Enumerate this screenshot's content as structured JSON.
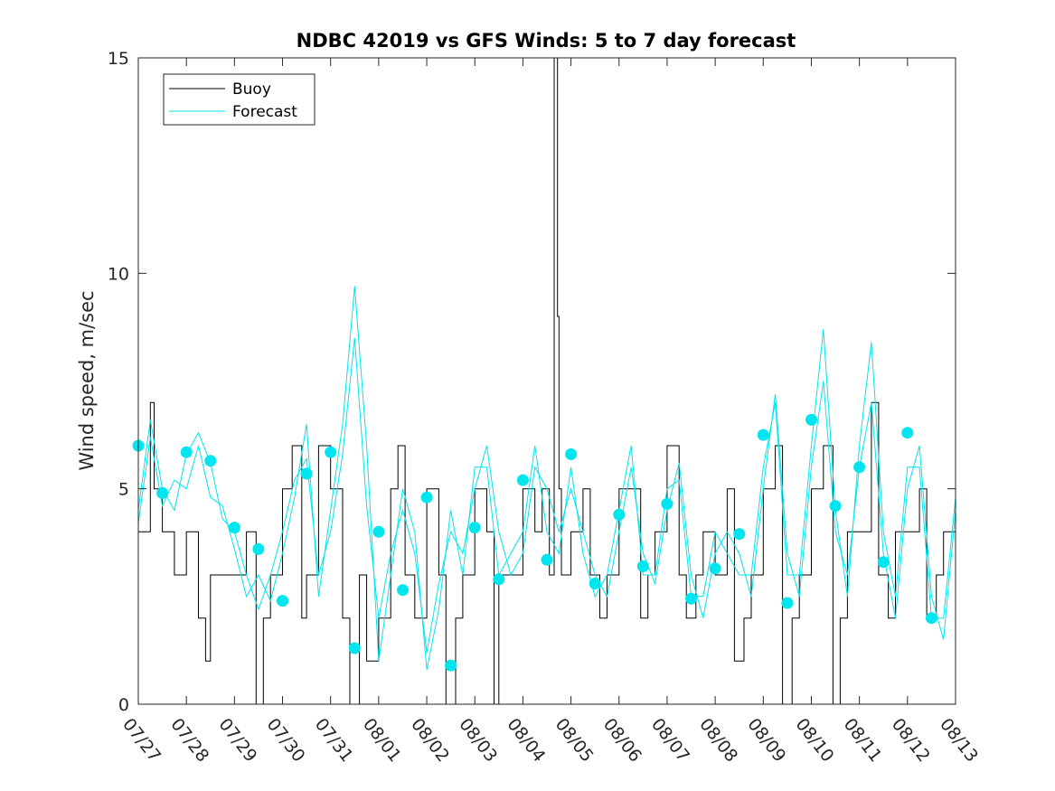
{
  "chart_data": {
    "type": "line",
    "title": "NDBC 42019 vs GFS Winds: 5 to 7 day forecast",
    "xlabel": "",
    "ylabel": "Wind speed, m/sec",
    "xlim": [
      "07/27",
      "08/13"
    ],
    "ylim": [
      0,
      15
    ],
    "x_ticks": [
      "07/27",
      "07/28",
      "07/29",
      "07/30",
      "07/31",
      "08/01",
      "08/02",
      "08/03",
      "08/04",
      "08/05",
      "08/06",
      "08/07",
      "08/08",
      "08/09",
      "08/10",
      "08/11",
      "08/12",
      "08/13"
    ],
    "y_ticks": [
      0,
      5,
      10,
      15
    ],
    "grid": false,
    "legend_position": "top-left",
    "series": [
      {
        "name": "Buoy",
        "color": "#000000",
        "note_days_are_offsets_from_07_27": true,
        "x": [
          0,
          0.25,
          0.33,
          0.5,
          0.75,
          1,
          1.25,
          1.4,
          1.5,
          1.75,
          2,
          2.25,
          2.45,
          2.6,
          2.75,
          3,
          3.2,
          3.4,
          3.5,
          3.75,
          4,
          4.25,
          4.4,
          4.6,
          4.75,
          5,
          5.25,
          5.4,
          5.55,
          5.75,
          6,
          6.25,
          6.4,
          6.6,
          6.75,
          7,
          7.25,
          7.4,
          7.5,
          7.75,
          8,
          8.25,
          8.4,
          8.55,
          8.65,
          8.72,
          8.75,
          8.8,
          9,
          9.25,
          9.4,
          9.6,
          9.75,
          10,
          10.25,
          10.45,
          10.6,
          10.75,
          11,
          11.25,
          11.4,
          11.6,
          11.75,
          12,
          12.25,
          12.4,
          12.6,
          12.75,
          13,
          13.25,
          13.4,
          13.6,
          13.75,
          14,
          14.25,
          14.45,
          14.6,
          14.75,
          15,
          15.25,
          15.4,
          15.6,
          15.75,
          16,
          16.25,
          16.4,
          16.6,
          16.75,
          17
        ],
        "values": [
          4,
          7,
          5,
          4,
          3,
          4,
          2,
          1,
          3,
          3,
          3,
          4,
          0,
          2,
          3,
          5,
          6,
          2,
          3,
          6,
          5,
          2,
          0,
          3,
          1,
          2,
          5,
          6,
          3,
          2,
          5,
          3,
          0,
          2,
          3,
          5,
          4,
          0,
          3,
          3,
          5,
          4,
          5,
          3,
          15,
          9,
          5,
          3,
          4,
          5,
          3,
          2,
          3,
          5,
          5,
          2,
          3,
          4,
          6,
          3,
          2,
          3,
          4,
          3,
          5,
          1,
          2,
          3,
          5,
          6,
          0,
          2,
          3,
          5,
          6,
          0,
          2,
          4,
          4,
          7,
          3,
          2,
          4,
          4,
          5,
          2,
          3,
          4,
          5
        ]
      },
      {
        "name": "Forecast",
        "color": "#00e5ee",
        "x": [
          0,
          0.25,
          0.5,
          0.75,
          1,
          1.25,
          1.5,
          1.75,
          2,
          2.25,
          2.5,
          2.75,
          3,
          3.25,
          3.5,
          3.75,
          4,
          4.25,
          4.5,
          4.75,
          5,
          5.25,
          5.5,
          5.75,
          6,
          6.25,
          6.5,
          6.75,
          7,
          7.25,
          7.5,
          7.75,
          8,
          8.25,
          8.5,
          8.75,
          9,
          9.25,
          9.5,
          9.75,
          10,
          10.25,
          10.5,
          10.75,
          11,
          11.25,
          11.5,
          11.75,
          12,
          12.25,
          12.5,
          12.75,
          13,
          13.25,
          13.5,
          13.75,
          14,
          14.25,
          14.5,
          14.75,
          15,
          15.25,
          15.5,
          15.75,
          16,
          16.25,
          16.5,
          16.75,
          17
        ],
        "values": [
          4.5,
          6.6,
          5.0,
          4.5,
          5.8,
          6.3,
          5.6,
          4.3,
          4.0,
          3.0,
          2.2,
          3.0,
          4.0,
          5.2,
          5.7,
          3.0,
          4.0,
          5.8,
          8.5,
          4.6,
          2.0,
          3.5,
          4.5,
          3.5,
          1.2,
          2.8,
          4.0,
          3.5,
          5.0,
          6.0,
          4.0,
          3.0,
          3.5,
          5.5,
          5.0,
          4.0,
          5.0,
          4.0,
          3.0,
          2.5,
          4.0,
          5.5,
          3.5,
          2.8,
          4.5,
          5.6,
          3.0,
          2.0,
          3.5,
          4.0,
          3.5,
          2.5,
          5.0,
          7.2,
          3.5,
          2.5,
          5.5,
          7.5,
          4.0,
          3.0,
          5.5,
          7.0,
          3.5,
          2.0,
          5.0,
          6.0,
          2.5,
          1.5,
          4.5
        ]
      },
      {
        "name": "",
        "color": "#00e5ee",
        "x": [
          0,
          0.25,
          0.5,
          0.75,
          1,
          1.25,
          1.5,
          1.75,
          2,
          2.25,
          2.5,
          2.75,
          3,
          3.25,
          3.5,
          3.75,
          4,
          4.25,
          4.5,
          4.75,
          5,
          5.25,
          5.5,
          5.75,
          6,
          6.25,
          6.5,
          6.75,
          7,
          7.25,
          7.5,
          7.75,
          8,
          8.25,
          8.5,
          8.75,
          9,
          9.25,
          9.5,
          9.75,
          10,
          10.25,
          10.5,
          10.75,
          11,
          11.25,
          11.5,
          11.75,
          12,
          12.25,
          12.5,
          12.75,
          13,
          13.25,
          13.5,
          13.75,
          14,
          14.25,
          14.5,
          14.75,
          15,
          15.25,
          15.5,
          15.75,
          16,
          16.25,
          16.5,
          16.75,
          17
        ],
        "values": [
          4.2,
          6.2,
          4.6,
          5.2,
          5.0,
          6.0,
          4.8,
          4.6,
          3.6,
          2.5,
          3.0,
          2.4,
          3.5,
          4.8,
          6.5,
          2.5,
          4.5,
          6.5,
          9.7,
          6.0,
          1.0,
          3.0,
          5.0,
          4.0,
          0.8,
          2.2,
          4.5,
          3.0,
          5.5,
          5.5,
          3.0,
          3.5,
          4.0,
          6.0,
          4.0,
          3.5,
          5.5,
          3.5,
          2.5,
          3.0,
          4.5,
          6.0,
          3.0,
          3.0,
          5.0,
          5.2,
          2.5,
          2.5,
          4.0,
          3.5,
          3.0,
          3.0,
          5.5,
          7.0,
          3.0,
          3.0,
          6.0,
          8.7,
          4.5,
          2.5,
          6.0,
          8.4,
          4.0,
          2.5,
          5.5,
          5.5,
          2.0,
          2.0,
          4.8
        ]
      }
    ],
    "markers": {
      "color": "#00e5ee",
      "x": [
        0,
        0.5,
        1,
        1.5,
        2,
        2.5,
        3,
        3.5,
        4,
        4.5,
        5,
        5.5,
        6,
        6.5,
        7,
        7.5,
        8,
        8.5,
        9,
        9.5,
        10,
        10.5,
        11,
        11.5,
        12,
        12.5,
        13,
        13.5,
        14,
        14.5,
        15,
        15.5,
        16,
        16.5
      ],
      "values": [
        6.0,
        4.9,
        5.85,
        5.65,
        4.1,
        3.6,
        2.4,
        5.35,
        5.85,
        1.3,
        4.0,
        2.65,
        4.8,
        0.9,
        4.1,
        2.9,
        5.2,
        3.35,
        5.8,
        2.8,
        4.4,
        3.2,
        4.65,
        2.45,
        3.15,
        3.95,
        6.25,
        2.35,
        6.6,
        4.6,
        5.5,
        3.3,
        6.3,
        2.0
      ]
    }
  }
}
